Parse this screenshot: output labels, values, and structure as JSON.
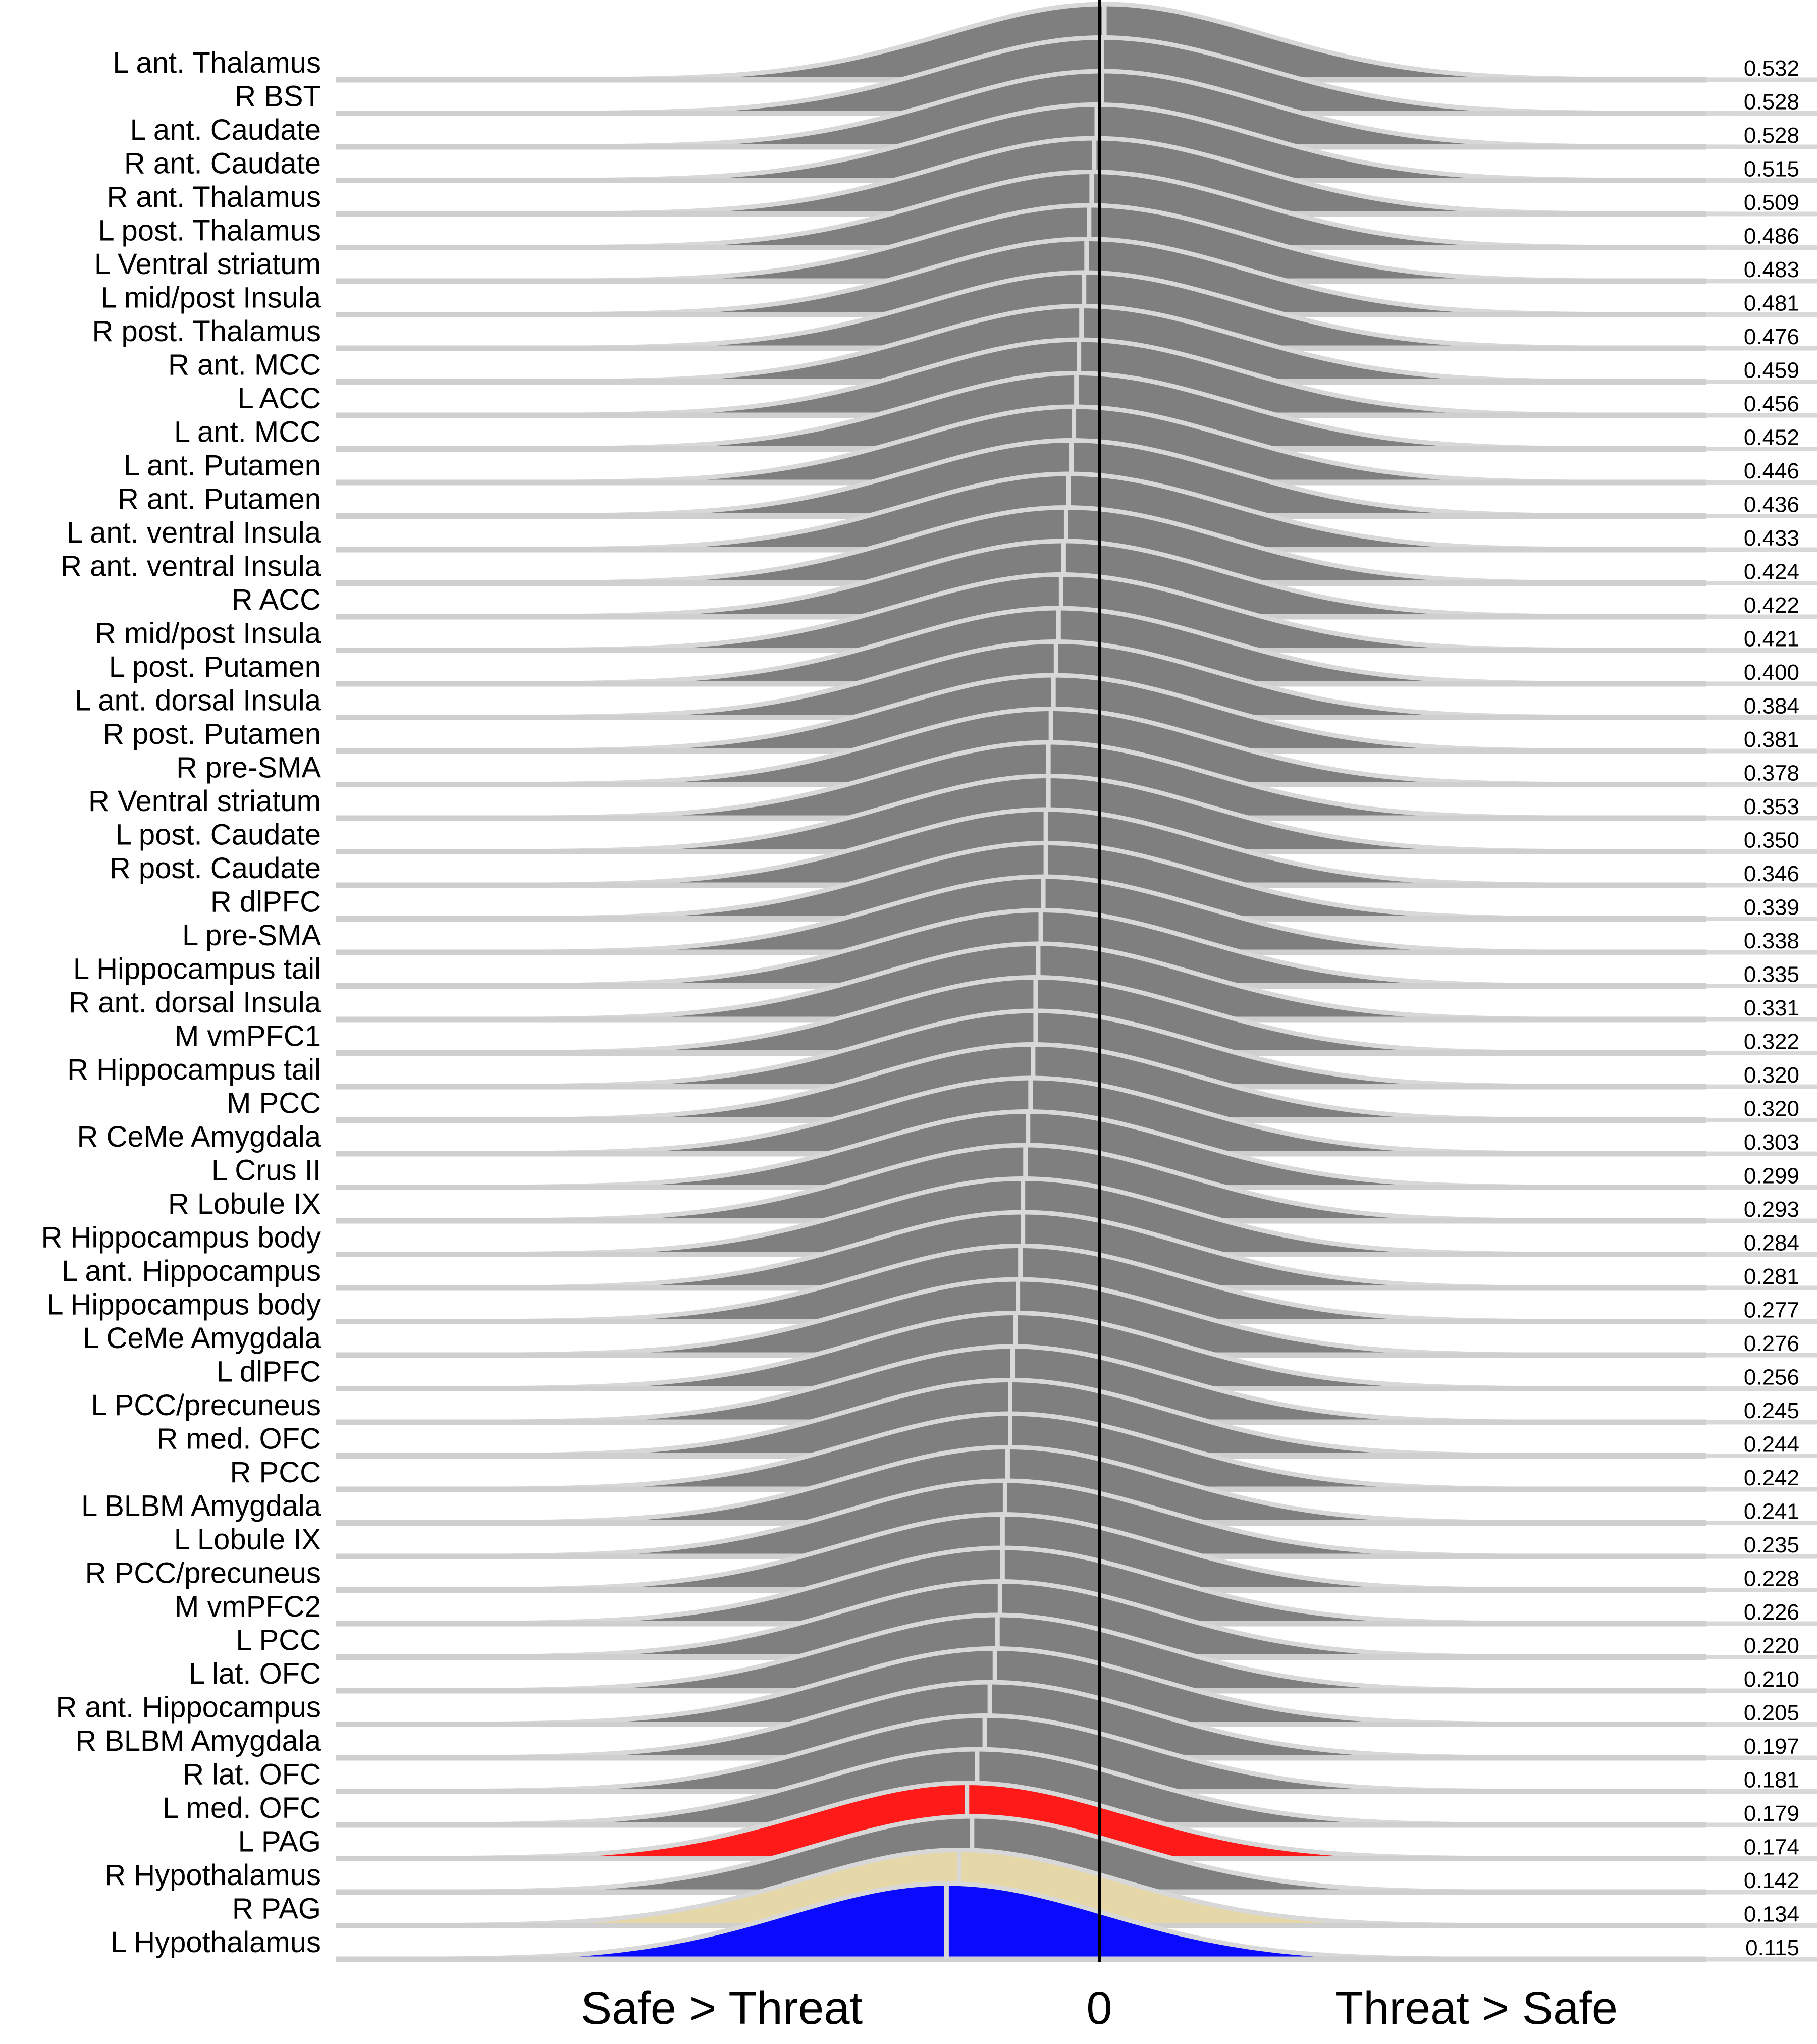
{
  "chart_data": {
    "type": "ridgeline",
    "x_axis": {
      "left_label": "Safe > Threat",
      "zero_label": "0",
      "right_label": "Threat > Safe"
    },
    "colors": {
      "default_fill": "#7f7f7f",
      "outline": "#d8d8d8",
      "baseline": "#cfcfcf",
      "zero_line": "#000000",
      "highlight": {
        "L PAG": "#ff1a1a",
        "R PAG": "#e6d7a8",
        "L Hypothalamus": "#0a0aff"
      }
    },
    "rows": [
      {
        "region": "L ant. Thalamus",
        "probability": "0.532",
        "center": 0.02,
        "sd": 0.62
      },
      {
        "region": "R BST",
        "probability": "0.528",
        "center": 0.01,
        "sd": 0.62
      },
      {
        "region": "L ant. Caudate",
        "probability": "0.528",
        "center": 0.01,
        "sd": 0.62
      },
      {
        "region": "R ant. Caudate",
        "probability": "0.515",
        "center": -0.01,
        "sd": 0.62
      },
      {
        "region": "R ant. Thalamus",
        "probability": "0.509",
        "center": -0.02,
        "sd": 0.62
      },
      {
        "region": "L post. Thalamus",
        "probability": "0.486",
        "center": -0.03,
        "sd": 0.62
      },
      {
        "region": "L Ventral striatum",
        "probability": "0.483",
        "center": -0.04,
        "sd": 0.62
      },
      {
        "region": "L mid/post Insula",
        "probability": "0.481",
        "center": -0.05,
        "sd": 0.62
      },
      {
        "region": "R post. Thalamus",
        "probability": "0.476",
        "center": -0.06,
        "sd": 0.62
      },
      {
        "region": "R ant. MCC",
        "probability": "0.459",
        "center": -0.07,
        "sd": 0.62
      },
      {
        "region": "L ACC",
        "probability": "0.456",
        "center": -0.08,
        "sd": 0.62
      },
      {
        "region": "L ant. MCC",
        "probability": "0.452",
        "center": -0.09,
        "sd": 0.62
      },
      {
        "region": "L ant. Putamen",
        "probability": "0.446",
        "center": -0.1,
        "sd": 0.62
      },
      {
        "region": "R ant. Putamen",
        "probability": "0.436",
        "center": -0.11,
        "sd": 0.62
      },
      {
        "region": "L ant. ventral Insula",
        "probability": "0.433",
        "center": -0.12,
        "sd": 0.62
      },
      {
        "region": "R ant. ventral Insula",
        "probability": "0.424",
        "center": -0.13,
        "sd": 0.62
      },
      {
        "region": "R ACC",
        "probability": "0.422",
        "center": -0.14,
        "sd": 0.62
      },
      {
        "region": "R mid/post Insula",
        "probability": "0.421",
        "center": -0.15,
        "sd": 0.62
      },
      {
        "region": "L post. Putamen",
        "probability": "0.400",
        "center": -0.16,
        "sd": 0.62
      },
      {
        "region": "L ant. dorsal Insula",
        "probability": "0.384",
        "center": -0.17,
        "sd": 0.62
      },
      {
        "region": "R post. Putamen",
        "probability": "0.381",
        "center": -0.18,
        "sd": 0.62
      },
      {
        "region": "R pre-SMA",
        "probability": "0.378",
        "center": -0.19,
        "sd": 0.62
      },
      {
        "region": "R Ventral striatum",
        "probability": "0.353",
        "center": -0.2,
        "sd": 0.62
      },
      {
        "region": "L post. Caudate",
        "probability": "0.350",
        "center": -0.2,
        "sd": 0.62
      },
      {
        "region": "R post. Caudate",
        "probability": "0.346",
        "center": -0.21,
        "sd": 0.62
      },
      {
        "region": "R dlPFC",
        "probability": "0.339",
        "center": -0.21,
        "sd": 0.62
      },
      {
        "region": "L pre-SMA",
        "probability": "0.338",
        "center": -0.22,
        "sd": 0.62
      },
      {
        "region": "L Hippocampus tail",
        "probability": "0.335",
        "center": -0.23,
        "sd": 0.62
      },
      {
        "region": "R ant. dorsal Insula",
        "probability": "0.331",
        "center": -0.24,
        "sd": 0.62
      },
      {
        "region": "M vmPFC1",
        "probability": "0.322",
        "center": -0.25,
        "sd": 0.62
      },
      {
        "region": "R Hippocampus tail",
        "probability": "0.320",
        "center": -0.25,
        "sd": 0.62
      },
      {
        "region": "M PCC",
        "probability": "0.320",
        "center": -0.26,
        "sd": 0.62
      },
      {
        "region": "R CeMe Amygdala",
        "probability": "0.303",
        "center": -0.27,
        "sd": 0.62
      },
      {
        "region": "L Crus II",
        "probability": "0.299",
        "center": -0.28,
        "sd": 0.62
      },
      {
        "region": "R Lobule IX",
        "probability": "0.293",
        "center": -0.29,
        "sd": 0.62
      },
      {
        "region": "R Hippocampus body",
        "probability": "0.284",
        "center": -0.3,
        "sd": 0.62
      },
      {
        "region": "L ant. Hippocampus",
        "probability": "0.281",
        "center": -0.3,
        "sd": 0.62
      },
      {
        "region": "L Hippocampus body",
        "probability": "0.277",
        "center": -0.31,
        "sd": 0.62
      },
      {
        "region": "L CeMe Amygdala",
        "probability": "0.276",
        "center": -0.32,
        "sd": 0.62
      },
      {
        "region": "L dlPFC",
        "probability": "0.256",
        "center": -0.33,
        "sd": 0.62
      },
      {
        "region": "L PCC/precuneus",
        "probability": "0.245",
        "center": -0.34,
        "sd": 0.62
      },
      {
        "region": "R med. OFC",
        "probability": "0.244",
        "center": -0.35,
        "sd": 0.62
      },
      {
        "region": "R PCC",
        "probability": "0.242",
        "center": -0.35,
        "sd": 0.62
      },
      {
        "region": "L BLBM Amygdala",
        "probability": "0.241",
        "center": -0.36,
        "sd": 0.62
      },
      {
        "region": "L Lobule IX",
        "probability": "0.235",
        "center": -0.37,
        "sd": 0.62
      },
      {
        "region": "R PCC/precuneus",
        "probability": "0.228",
        "center": -0.38,
        "sd": 0.62
      },
      {
        "region": "M vmPFC2",
        "probability": "0.226",
        "center": -0.38,
        "sd": 0.62
      },
      {
        "region": "L PCC",
        "probability": "0.220",
        "center": -0.39,
        "sd": 0.62
      },
      {
        "region": "L lat. OFC",
        "probability": "0.210",
        "center": -0.4,
        "sd": 0.62
      },
      {
        "region": "R ant. Hippocampus",
        "probability": "0.205",
        "center": -0.41,
        "sd": 0.62
      },
      {
        "region": "R BLBM Amygdala",
        "probability": "0.197",
        "center": -0.43,
        "sd": 0.62
      },
      {
        "region": "R lat. OFC",
        "probability": "0.181",
        "center": -0.45,
        "sd": 0.62
      },
      {
        "region": "L med. OFC",
        "probability": "0.179",
        "center": -0.48,
        "sd": 0.62
      },
      {
        "region": "L PAG",
        "probability": "0.174",
        "center": -0.52,
        "sd": 0.62
      },
      {
        "region": "R Hypothalamus",
        "probability": "0.142",
        "center": -0.5,
        "sd": 0.62
      },
      {
        "region": "R PAG",
        "probability": "0.134",
        "center": -0.55,
        "sd": 0.62
      },
      {
        "region": "L Hypothalamus",
        "probability": "0.115",
        "center": -0.6,
        "sd": 0.62
      }
    ]
  }
}
